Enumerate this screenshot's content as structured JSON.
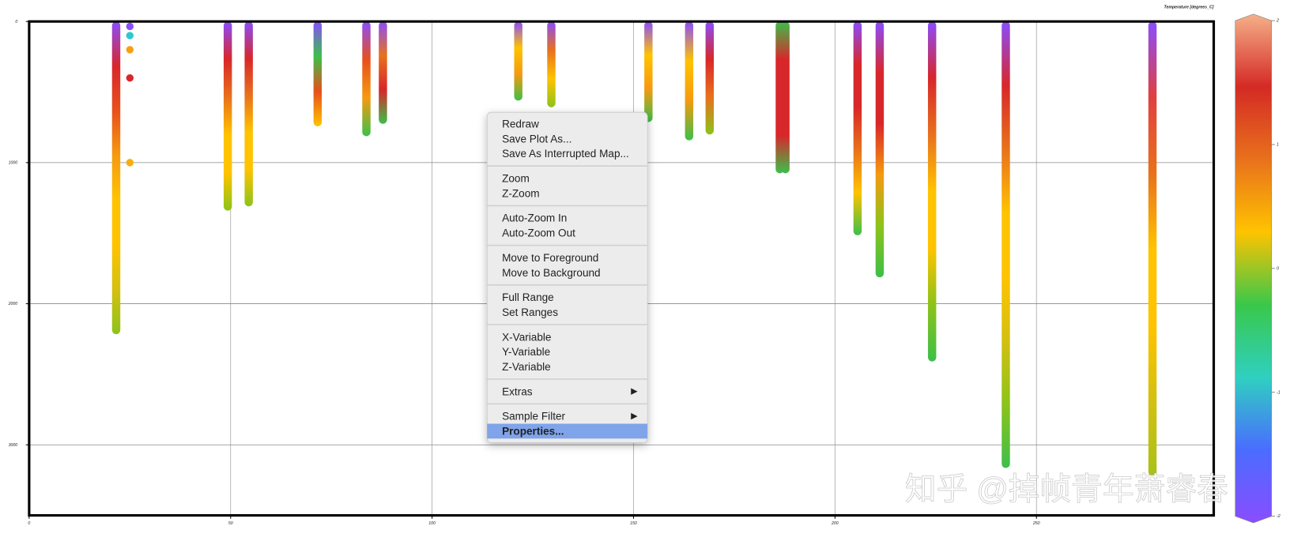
{
  "chart_data": {
    "type": "profiles",
    "xlim": [
      0,
      294
    ],
    "xticks": [
      0,
      50,
      100,
      150,
      200,
      250
    ],
    "ylim": [
      0,
      3500
    ],
    "yticks": [
      0,
      1000,
      2000,
      3000
    ],
    "y_inverted": true,
    "grid": true,
    "profiles": [
      {
        "x": 21.6,
        "depth": 2216,
        "colors": [
          "#8a4dff",
          "#d8272a",
          "#e8501c",
          "#f59a10",
          "#ffc300",
          "#ffc300",
          "#d4c010",
          "#8cc31a"
        ]
      },
      {
        "x": 49.3,
        "depth": 1340,
        "colors": [
          "#8a4dff",
          "#d8272a",
          "#e8711c",
          "#ffc300",
          "#ffc300",
          "#8cc31a"
        ]
      },
      {
        "x": 54.5,
        "depth": 1310,
        "colors": [
          "#8a4dff",
          "#d8272a",
          "#e8711c",
          "#ffc300",
          "#ffc300",
          "#8cc31a"
        ]
      },
      {
        "x": 71.6,
        "depth": 743,
        "colors": [
          "#8a4dff",
          "#3cbf4a",
          "#e8501c",
          "#ffc300"
        ]
      },
      {
        "x": 83.7,
        "depth": 813,
        "colors": [
          "#8a4dff",
          "#e8501c",
          "#f59a10",
          "#3cbf4a"
        ]
      },
      {
        "x": 87.8,
        "depth": 725,
        "colors": [
          "#8a4dff",
          "#e8711c",
          "#d8272a",
          "#3cbf4a"
        ]
      },
      {
        "x": 121.4,
        "depth": 561,
        "colors": [
          "#8a4dff",
          "#ffc300",
          "#f59a10",
          "#3cbf4a"
        ]
      },
      {
        "x": 129.6,
        "depth": 608,
        "colors": [
          "#8a4dff",
          "#e8711c",
          "#ffc300",
          "#8cc31a"
        ]
      },
      {
        "x": 153.7,
        "depth": 713,
        "colors": [
          "#8a4dff",
          "#ffc300",
          "#f59a10",
          "#3cbf4a"
        ]
      },
      {
        "x": 163.8,
        "depth": 842,
        "colors": [
          "#8a4dff",
          "#ffc300",
          "#f59a10",
          "#3cbf4a"
        ]
      },
      {
        "x": 168.9,
        "depth": 801,
        "colors": [
          "#8a4dff",
          "#d8272a",
          "#e8711c",
          "#8cc31a"
        ]
      },
      {
        "x": 186.3,
        "depth": 1076,
        "colors": [
          "#3cbf4a",
          "#d8272a",
          "#d8272a",
          "#d8272a",
          "#3cbf4a"
        ]
      },
      {
        "x": 187.7,
        "depth": 1076,
        "colors": [
          "#3cbf4a",
          "#d8272a",
          "#d8272a",
          "#d8272a",
          "#3cbf4a"
        ]
      },
      {
        "x": 205.6,
        "depth": 1515,
        "colors": [
          "#8a4dff",
          "#d8272a",
          "#d8272a",
          "#e8711c",
          "#ffc300",
          "#3cbf4a"
        ]
      },
      {
        "x": 211.1,
        "depth": 1813,
        "colors": [
          "#8a4dff",
          "#d8272a",
          "#d8272a",
          "#f59a10",
          "#8cc31a",
          "#3cbf4a"
        ]
      },
      {
        "x": 224.1,
        "depth": 2409,
        "colors": [
          "#8a4dff",
          "#d8272a",
          "#e8711c",
          "#ffc300",
          "#ffc300",
          "#8cc31a",
          "#3cbf4a"
        ]
      },
      {
        "x": 242.4,
        "depth": 3164,
        "colors": [
          "#8a4dff",
          "#d8272a",
          "#e8711c",
          "#ffc300",
          "#ffc300",
          "#d4c010",
          "#8cc31a",
          "#3cbf4a"
        ]
      },
      {
        "x": 278.8,
        "depth": 3222,
        "colors": [
          "#8a4dff",
          "#e04040",
          "#e8711c",
          "#ffc300",
          "#ffc300",
          "#d4c010",
          "#a8c11a"
        ]
      }
    ],
    "points": {
      "x": [
        25,
        25,
        25,
        25,
        25
      ],
      "y": [
        35,
        100,
        200,
        400,
        1000
      ],
      "colors": [
        "#8a4dff",
        "#2fc8d0",
        "#f5a010",
        "#d8272a",
        "#f5b010"
      ]
    },
    "colorbar": {
      "title": "Temperature [degrees_C]",
      "clim": [
        -2,
        2
      ],
      "ticks": [
        -2,
        -1,
        0,
        1,
        2
      ],
      "colors": [
        "#8a4dff",
        "#4a6cff",
        "#2fd0c0",
        "#39c84a",
        "#ffc300",
        "#e8711c",
        "#d42a25",
        "#f5b08a"
      ]
    }
  },
  "context_menu": {
    "groups": [
      [
        {
          "label": "Redraw"
        },
        {
          "label": "Save Plot As..."
        },
        {
          "label": "Save As Interrupted Map...",
          "enabled": false
        }
      ],
      [
        {
          "label": "Zoom"
        },
        {
          "label": "Z-Zoom"
        }
      ],
      [
        {
          "label": "Auto-Zoom In"
        },
        {
          "label": "Auto-Zoom Out"
        }
      ],
      [
        {
          "label": "Move to Foreground"
        },
        {
          "label": "Move to Background"
        }
      ],
      [
        {
          "label": "Full Range"
        },
        {
          "label": "Set Ranges"
        }
      ],
      [
        {
          "label": "X-Variable"
        },
        {
          "label": "Y-Variable"
        },
        {
          "label": "Z-Variable"
        }
      ],
      [
        {
          "label": "Extras",
          "has_submenu": true
        }
      ],
      [
        {
          "label": "Sample Filter",
          "has_submenu": true
        },
        {
          "label": "Properties...",
          "highlighted": true
        }
      ]
    ]
  },
  "watermark": "知乎 @掉帧青年萧睿春"
}
